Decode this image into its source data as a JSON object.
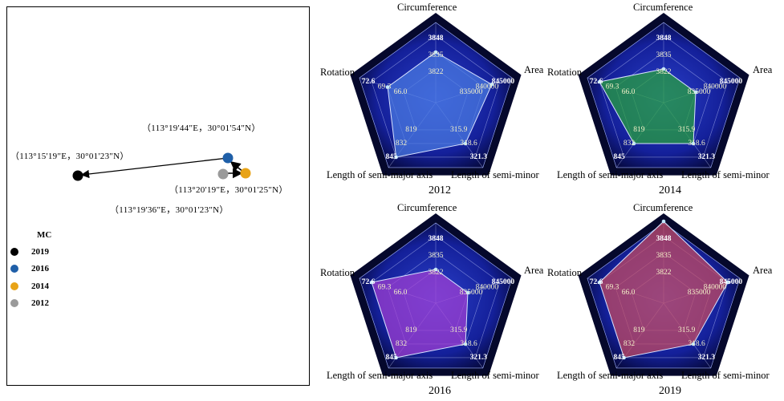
{
  "map": {
    "coords": [
      {
        "id": "c2019",
        "text": "（113°15'19\"E，30°01'23\"N）"
      },
      {
        "id": "c2016",
        "text": "（113°19'44\"E，30°01'54\"N）"
      },
      {
        "id": "c2014",
        "text": "（113°20'19\"E，30°01'25\"N）"
      },
      {
        "id": "c2012",
        "text": "（113°19'36\"E，30°01'23\"N）"
      }
    ],
    "legend": {
      "title": "MC",
      "items": [
        {
          "label": "2019",
          "color": "#000000"
        },
        {
          "label": "2016",
          "color": "#1f5fa8"
        },
        {
          "label": "2014",
          "color": "#e8a317"
        },
        {
          "label": "2012",
          "color": "#9a9a9a"
        }
      ]
    }
  },
  "axes": {
    "top": "Circumference",
    "right": "Area",
    "bottom_right": "Length of semi-minor",
    "bottom_left": "Length of semi-major axis",
    "left": "Rotation"
  },
  "ring_ticks": {
    "circumference": [
      "3822",
      "3835",
      "3848"
    ],
    "area": [
      "835000",
      "840000",
      "845000"
    ],
    "semi_minor": [
      "315.9",
      "318.6",
      "321.3"
    ],
    "semi_major": [
      "819",
      "832",
      "845"
    ],
    "rotation": [
      "66.0",
      "69.3",
      "72.6"
    ]
  },
  "chart_data": [
    {
      "type": "radar",
      "title": "2012",
      "axes": [
        "Circumference",
        "Area",
        "Length of semi-minor",
        "Length of semi-major axis",
        "Rotation"
      ],
      "values": [
        3835,
        842500,
        318.6,
        845,
        69.3
      ],
      "fill": "#4a7ae0"
    },
    {
      "type": "radar",
      "title": "2014",
      "axes": [
        "Circumference",
        "Area",
        "Length of semi-minor",
        "Length of semi-major axis",
        "Rotation"
      ],
      "values": [
        3822,
        835000,
        318.6,
        832,
        72.6
      ],
      "fill": "#27a33a"
    },
    {
      "type": "radar",
      "title": "2016",
      "axes": [
        "Circumference",
        "Area",
        "Length of semi-minor",
        "Length of semi-major axis",
        "Rotation"
      ],
      "values": [
        3822,
        835000,
        318.6,
        845,
        72.6
      ],
      "fill": "#a23fd2"
    },
    {
      "type": "radar",
      "title": "2019",
      "axes": [
        "Circumference",
        "Area",
        "Length of semi-minor",
        "Length of semi-major axis",
        "Rotation"
      ],
      "values": [
        3861,
        845000,
        318.6,
        845,
        72.6
      ],
      "fill": "#c84a5e"
    }
  ]
}
